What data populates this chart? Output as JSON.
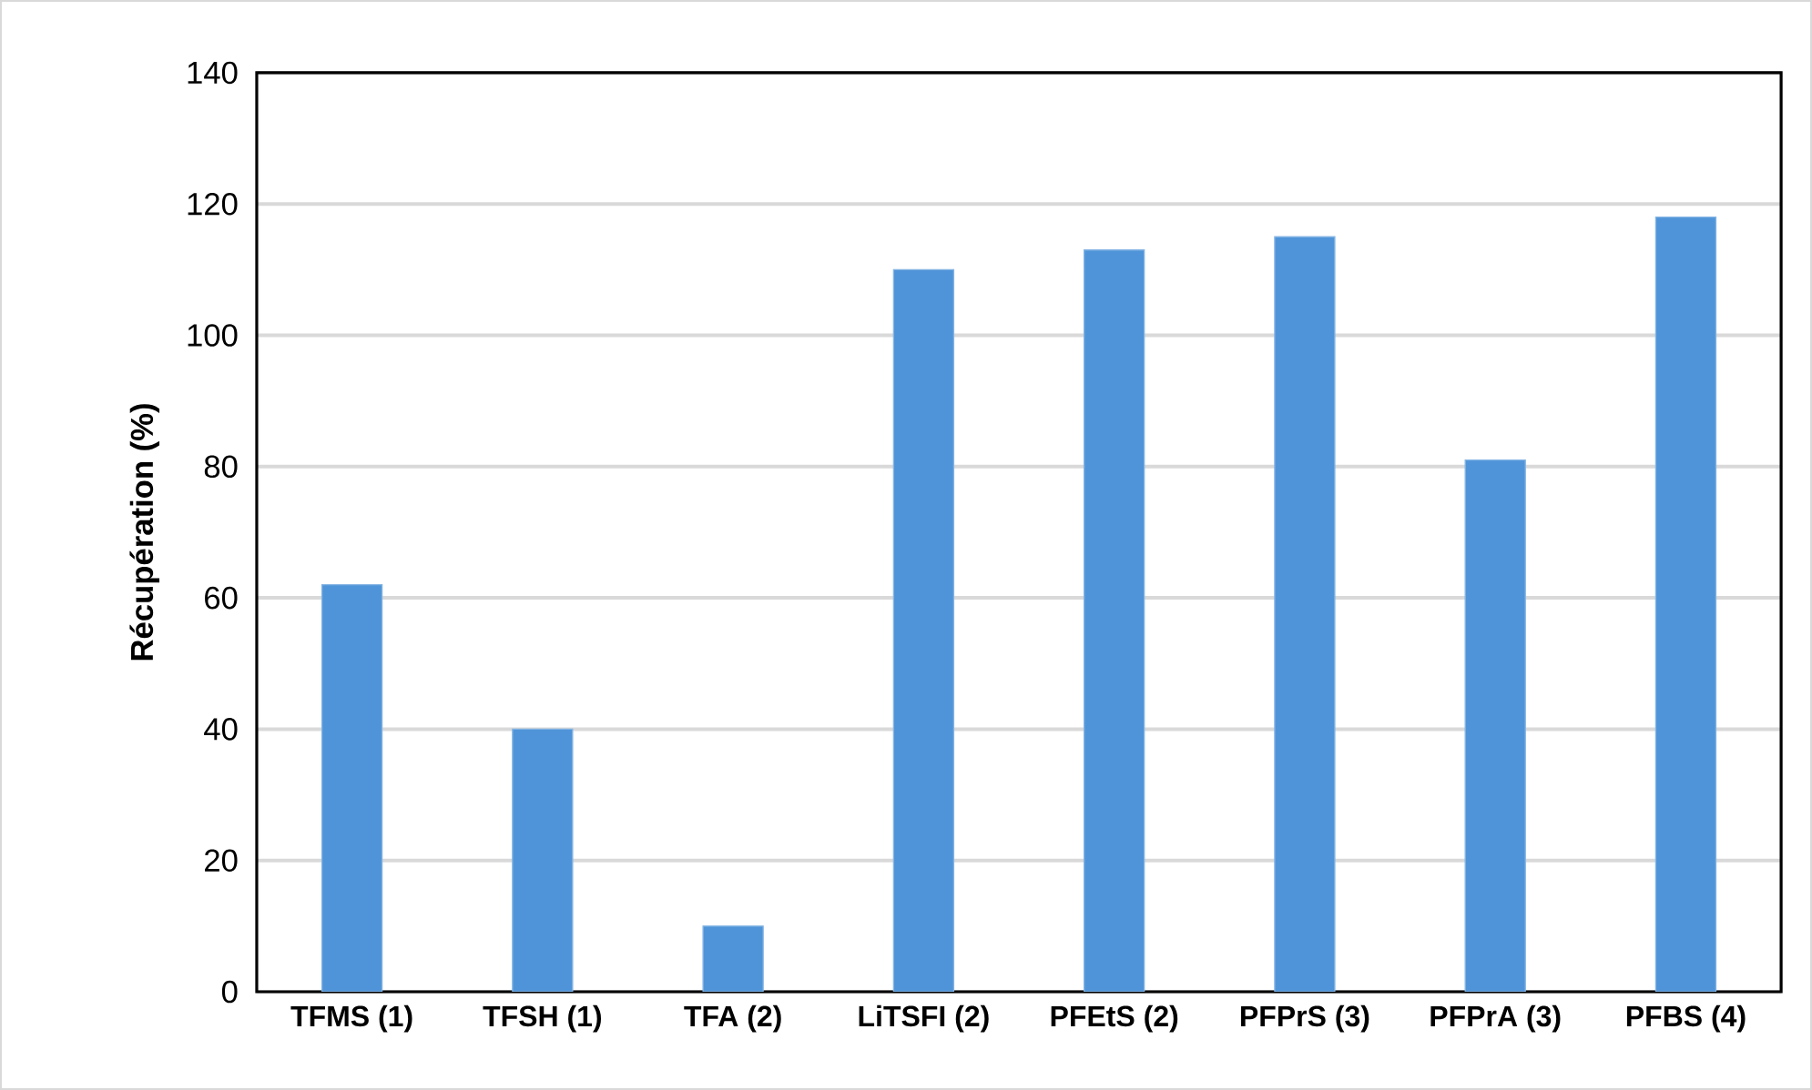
{
  "chart_data": {
    "type": "bar",
    "ylabel": "Récupération (%)",
    "categories": [
      "TFMS (1)",
      "TFSH (1)",
      "TFA (2)",
      "LiTSFI (2)",
      "PFEtS (2)",
      "PFPrS (3)",
      "PFPrA (3)",
      "PFBS (4)"
    ],
    "values": [
      62,
      40,
      10,
      110,
      113,
      115,
      81,
      118
    ],
    "color": "#4f94d8",
    "ylim": [
      0,
      140
    ],
    "yticks": [
      0,
      20,
      40,
      60,
      80,
      100,
      120,
      140
    ],
    "grid": "y"
  }
}
